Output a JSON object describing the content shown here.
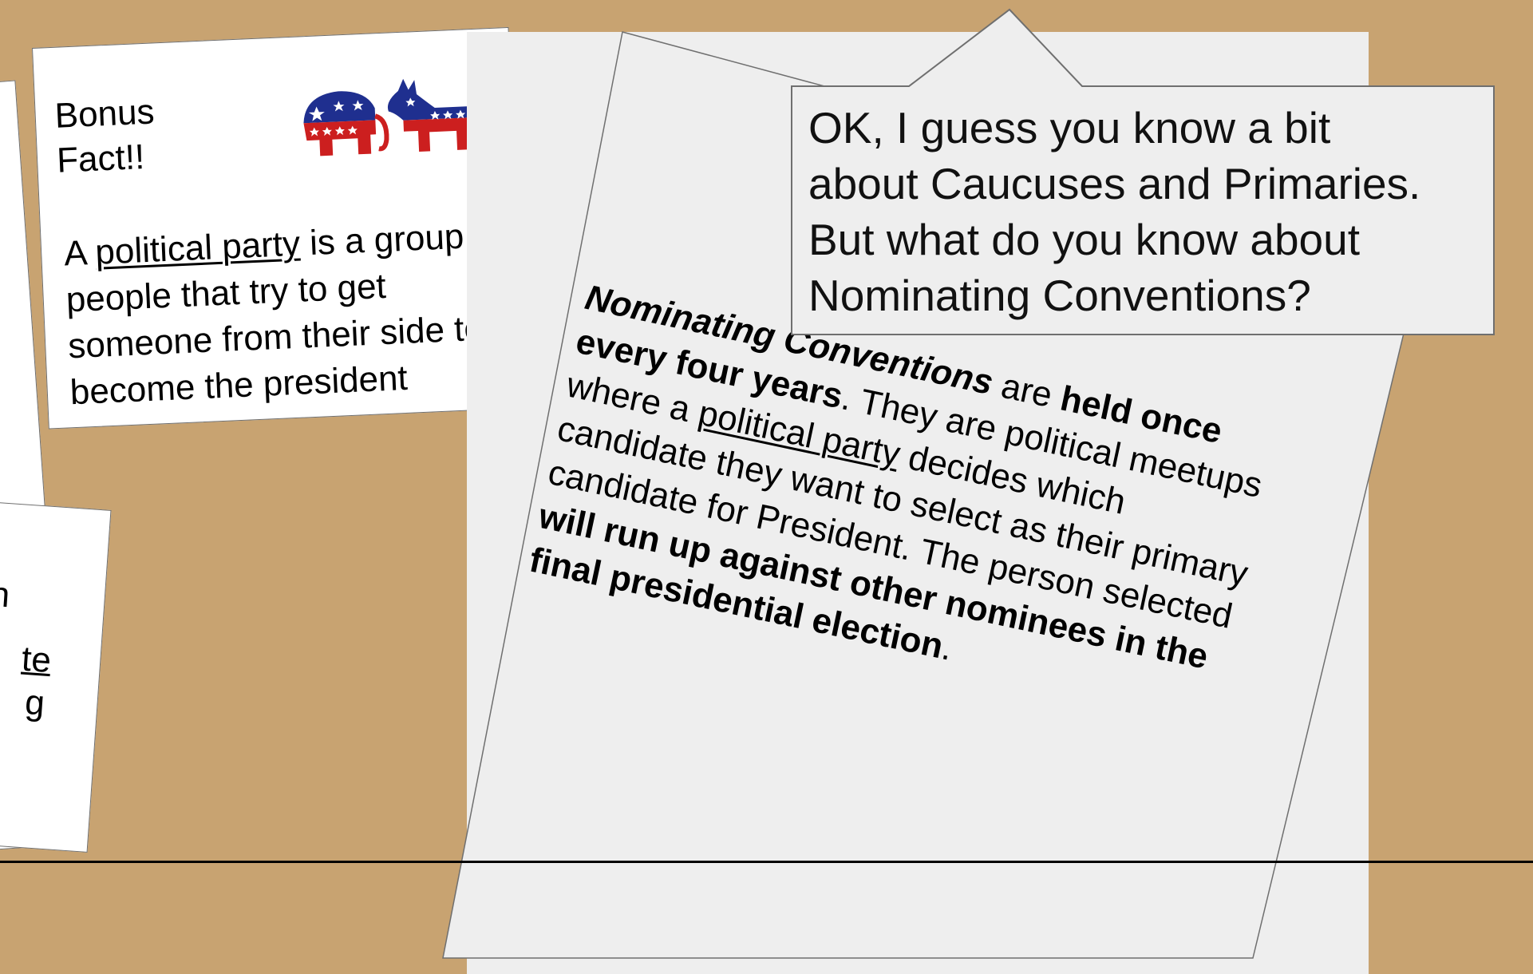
{
  "bonus_card": {
    "title_line1": "Bonus",
    "title_line2": "Fact!!",
    "body_prefix": "A ",
    "body_term": "political party",
    "body_rest": " is a group of people that try to get someone from their side to become the president",
    "logos": "elephant-and-donkey-icon"
  },
  "convention_paper": {
    "p1": "Nominating Conventions",
    "p2": " are ",
    "p3": "held once every four years",
    "p4": ". They are political meetups where a ",
    "p5": "political party",
    "p6": " decides which candidate they want to select as their primary candidate for President. The person selected ",
    "p7": "will run up against other nominees in the final presidential election",
    "p8": "."
  },
  "speech_bubble": {
    "line1": "OK, I guess you know a bit",
    "line2": "about Caucuses and Primaries.",
    "line3": "But what do you know about",
    "line4": "Nominating Conventions?"
  },
  "left_fragments": {
    "frag1": "n",
    "frag2": "te",
    "frag3": "g"
  },
  "colors": {
    "background": "#c8a371",
    "paper": "#eeeeee",
    "republican_red": "#cc1f1f",
    "democrat_blue": "#1f2f8f"
  }
}
